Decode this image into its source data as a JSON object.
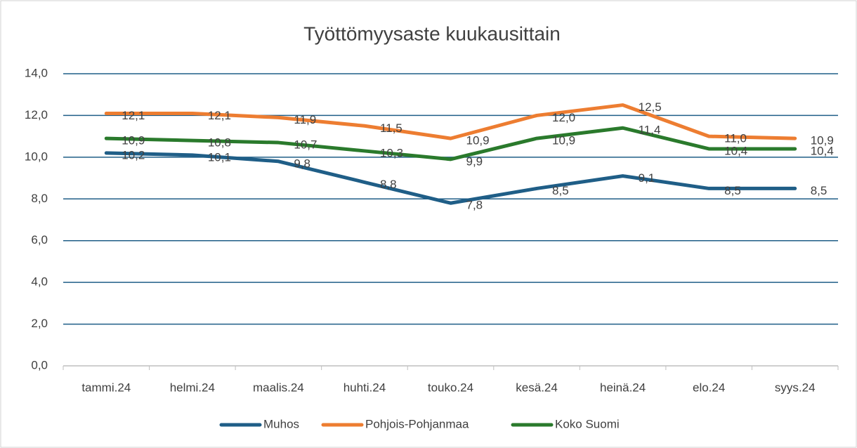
{
  "chart_data": {
    "type": "line",
    "title": "Työttömyysaste kuukausittain",
    "categories": [
      "tammi.24",
      "helmi.24",
      "maalis.24",
      "huhti.24",
      "touko.24",
      "kesä.24",
      "heinä.24",
      "elo.24",
      "syys.24"
    ],
    "series": [
      {
        "name": "Muhos",
        "color": "#1f5e87",
        "values": [
          10.2,
          10.1,
          9.8,
          8.8,
          7.8,
          8.5,
          9.1,
          8.5,
          8.5
        ],
        "value_labels": [
          "10,2",
          "10,1",
          "9,8",
          "8,8",
          "7,8",
          "8,5",
          "9,1",
          "8,5",
          "8,5"
        ]
      },
      {
        "name": "Pohjois-Pohjanmaa",
        "color": "#ed7d31",
        "values": [
          12.1,
          12.1,
          11.9,
          11.5,
          10.9,
          12.0,
          12.5,
          11.0,
          10.9
        ],
        "value_labels": [
          "12,1",
          "12,1",
          "11,9",
          "11,5",
          "10,9",
          "12,0",
          "12,5",
          "11,0",
          "10,9"
        ]
      },
      {
        "name": "Koko Suomi",
        "color": "#2a7a2c",
        "values": [
          10.9,
          10.8,
          10.7,
          10.3,
          9.9,
          10.9,
          11.4,
          10.4,
          10.4
        ],
        "value_labels": [
          "10,9",
          "10,8",
          "10,7",
          "10,3",
          "9,9",
          "10,9",
          "11,4",
          "10,4",
          "10,4"
        ]
      }
    ],
    "ylim": [
      0,
      14
    ],
    "yticks": [
      {
        "value": 0,
        "label": "0,0"
      },
      {
        "value": 2,
        "label": "2,0"
      },
      {
        "value": 4,
        "label": "4,0"
      },
      {
        "value": 6,
        "label": "6,0"
      },
      {
        "value": 8,
        "label": "8,0"
      },
      {
        "value": 10,
        "label": "10,0"
      },
      {
        "value": 12,
        "label": "12,0"
      },
      {
        "value": 14,
        "label": "14,0"
      }
    ],
    "grid": true,
    "legend": "bottom"
  }
}
